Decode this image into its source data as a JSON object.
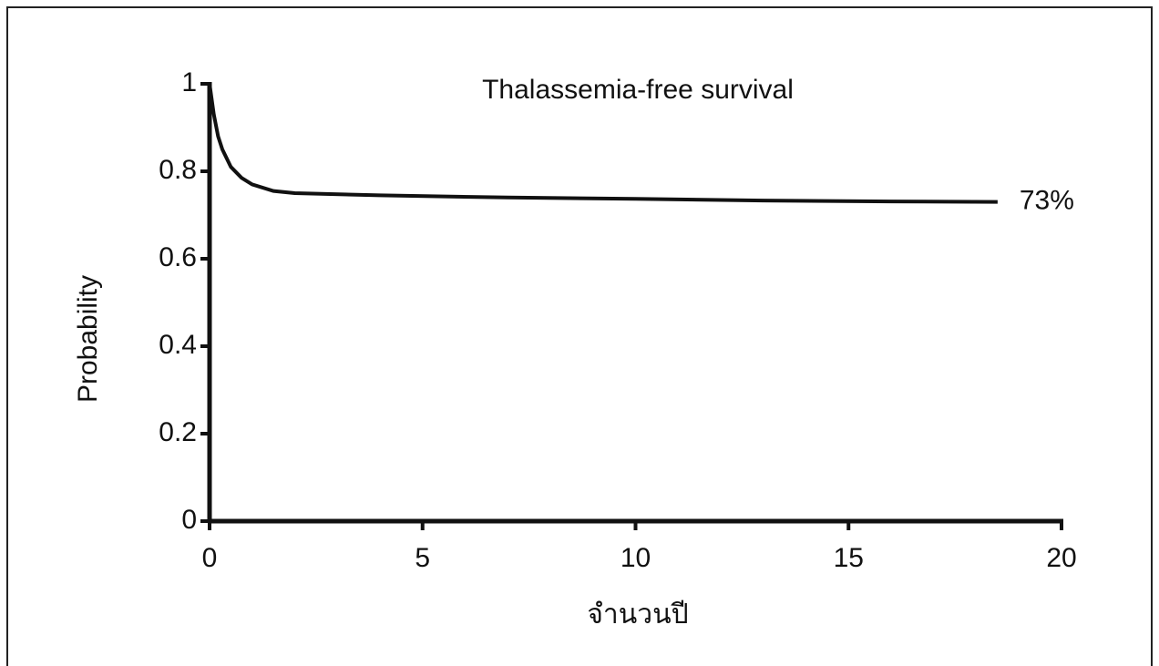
{
  "chart_data": {
    "type": "line",
    "title": "Thalassemia-free survival",
    "x_label": "จำนวนปี",
    "y_label": "Probability",
    "x": [
      0,
      0.1,
      0.2,
      0.3,
      0.5,
      0.75,
      1,
      1.5,
      2,
      4,
      7,
      10,
      13,
      16,
      18.5
    ],
    "series": [
      {
        "color": "#111111",
        "values": [
          1,
          0.93,
          0.88,
          0.85,
          0.81,
          0.785,
          0.77,
          0.755,
          0.75,
          0.745,
          0.74,
          0.737,
          0.733,
          0.731,
          0.73
        ]
      }
    ],
    "end_label": "73%",
    "xlim": [
      0,
      20
    ],
    "xticks": [
      0,
      5,
      10,
      15,
      20
    ],
    "ylim": [
      0,
      1
    ],
    "yticks": [
      0,
      0.2,
      0.4,
      0.6,
      0.8,
      1
    ],
    "grid": false
  }
}
